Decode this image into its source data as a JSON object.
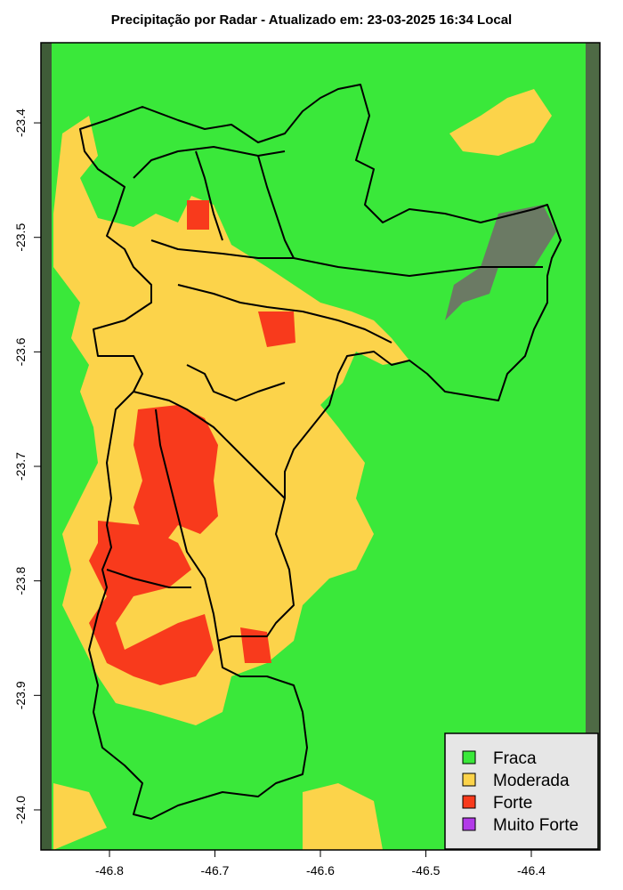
{
  "title": "Precipitação por Radar - Atualizado em: 23-03-2025 16:34 Local",
  "axes": {
    "x_ticks": [
      "-46.8",
      "-46.7",
      "-46.6",
      "-46.5",
      "-46.4"
    ],
    "x_tick_values": [
      -46.8,
      -46.7,
      -46.6,
      -46.5,
      -46.4
    ],
    "y_ticks": [
      "-23.4",
      "-23.5",
      "-23.6",
      "-23.7",
      "-23.8",
      "-23.9",
      "-24.0"
    ],
    "y_tick_values": [
      -23.4,
      -23.5,
      -23.6,
      -23.7,
      -23.8,
      -23.9,
      -24.0
    ],
    "x_range": [
      -46.865,
      -46.335
    ],
    "y_range": [
      -24.035,
      -23.33
    ]
  },
  "legend": {
    "placement": "bottom-right",
    "items": [
      {
        "label": "Fraca",
        "color": "#3ae83a"
      },
      {
        "label": "Moderada",
        "color": "#fcd34a"
      },
      {
        "label": "Forte",
        "color": "#f83a1c"
      },
      {
        "label": "Muito Forte",
        "color": "#b23ae8"
      }
    ]
  },
  "colors": {
    "fraca": "#3ae83a",
    "moderada": "#fcd34a",
    "forte": "#f83a1c",
    "muito_forte": "#b23ae8",
    "satellite": "#4f6e44",
    "border": "#000000"
  }
}
